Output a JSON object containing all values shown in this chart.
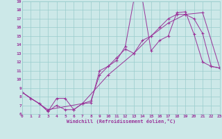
{
  "xlabel": "Windchill (Refroidissement éolien,°C)",
  "bg_color": "#cce8e8",
  "grid_color": "#99cccc",
  "line_color": "#993399",
  "xlim": [
    0,
    23
  ],
  "ylim": [
    6,
    19
  ],
  "xticks": [
    0,
    1,
    2,
    3,
    4,
    5,
    6,
    7,
    8,
    9,
    10,
    11,
    12,
    13,
    14,
    15,
    16,
    17,
    18,
    19,
    20,
    21,
    22,
    23
  ],
  "yticks": [
    6,
    7,
    8,
    9,
    10,
    11,
    12,
    13,
    14,
    15,
    16,
    17,
    18,
    19
  ],
  "s1_x": [
    0,
    1,
    2,
    3,
    4,
    5,
    6,
    7,
    8,
    9,
    10,
    11,
    12,
    13,
    14,
    15,
    16,
    17,
    18,
    19,
    20,
    21,
    22,
    23
  ],
  "s1_y": [
    8.5,
    7.8,
    7.2,
    6.3,
    7.8,
    7.8,
    6.5,
    7.2,
    7.3,
    11.0,
    11.5,
    12.5,
    13.5,
    13.0,
    14.5,
    15.0,
    16.0,
    17.0,
    17.5,
    17.5,
    17.0,
    15.3,
    11.5,
    11.3
  ],
  "s2_x": [
    0,
    1,
    2,
    3,
    4,
    5,
    6,
    7,
    8,
    9,
    10,
    11,
    12,
    13,
    14,
    15,
    16,
    17,
    18,
    19,
    20,
    21,
    22,
    23
  ],
  "s2_y": [
    8.5,
    7.8,
    7.2,
    6.3,
    7.0,
    6.5,
    6.5,
    7.2,
    7.5,
    10.5,
    11.5,
    12.2,
    13.8,
    19.2,
    19.2,
    13.3,
    14.5,
    15.0,
    17.7,
    17.8,
    15.2,
    12.0,
    11.5,
    11.3
  ],
  "s3_x": [
    0,
    3,
    7,
    10,
    13,
    15,
    17,
    19,
    21,
    23
  ],
  "s3_y": [
    8.5,
    6.5,
    7.2,
    10.5,
    13.0,
    15.0,
    16.5,
    17.5,
    17.7,
    11.3
  ]
}
